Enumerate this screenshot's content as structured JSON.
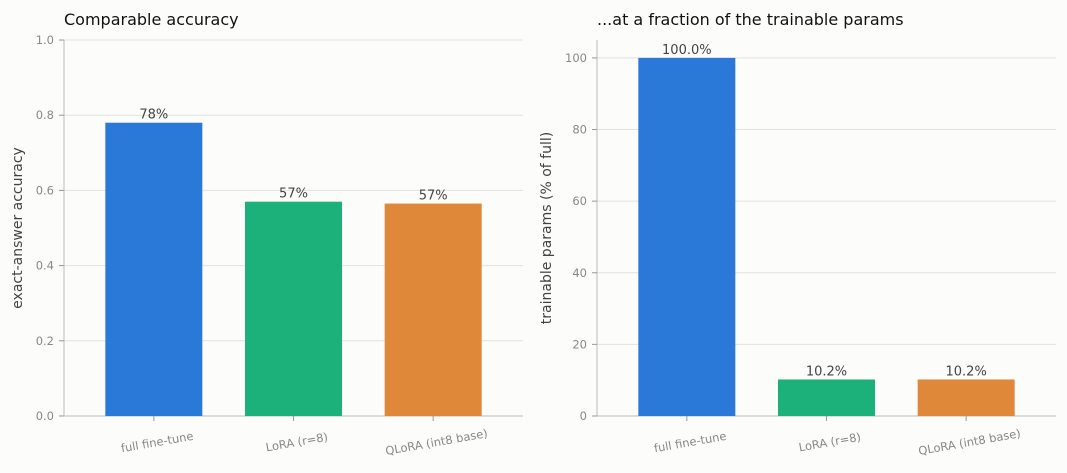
{
  "chart_data": [
    {
      "type": "bar",
      "title": "Comparable accuracy",
      "ylabel": "exact-answer accuracy",
      "xlabel": "",
      "categories": [
        "full fine-tune",
        "LoRA (r=8)",
        "QLoRA (int8 base)"
      ],
      "values": [
        0.78,
        0.57,
        0.565
      ],
      "value_labels": [
        "78%",
        "57%",
        "57%"
      ],
      "colors": [
        "#2a79d8",
        "#1cb07a",
        "#e0883a"
      ],
      "ylim": [
        0,
        1.0
      ],
      "yticks": [
        0.0,
        0.2,
        0.4,
        0.6,
        0.8,
        1.0
      ],
      "ytick_labels": [
        "0.0",
        "0.2",
        "0.4",
        "0.6",
        "0.8",
        "1.0"
      ],
      "grid": true
    },
    {
      "type": "bar",
      "title": "...at a fraction of the trainable params",
      "ylabel": "trainable params (% of full)",
      "xlabel": "",
      "categories": [
        "full fine-tune",
        "LoRA (r=8)",
        "QLoRA (int8 base)"
      ],
      "values": [
        100.0,
        10.2,
        10.2
      ],
      "value_labels": [
        "100.0%",
        "10.2%",
        "10.2%"
      ],
      "colors": [
        "#2a79d8",
        "#1cb07a",
        "#e0883a"
      ],
      "ylim": [
        0,
        105
      ],
      "yticks": [
        0,
        20,
        40,
        60,
        80,
        100
      ],
      "ytick_labels": [
        "0",
        "20",
        "40",
        "60",
        "80",
        "100"
      ],
      "grid": true
    }
  ]
}
